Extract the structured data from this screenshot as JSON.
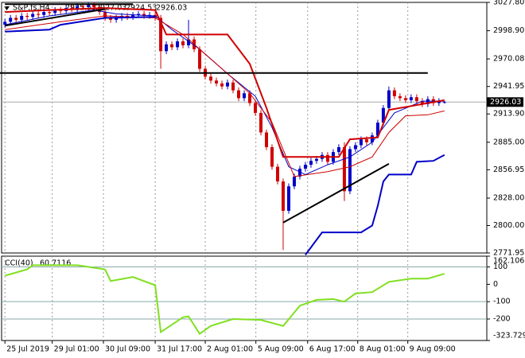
{
  "chart_data": {
    "type": "candlestick",
    "title": "S&P,fs,H4",
    "bull_color": "#0000c8",
    "bear_color": "#d00000",
    "xticks": [
      {
        "value": 0,
        "label": "25 Jul 2019"
      },
      {
        "value": 8.5,
        "label": "29 Jul 01:00"
      },
      {
        "value": 17.7,
        "label": "30 Jul 09:00"
      },
      {
        "value": 27,
        "label": "31 Jul 17:00"
      },
      {
        "value": 36,
        "label": "2 Aug 01:00"
      },
      {
        "value": 45.1,
        "label": "5 Aug 09:00"
      },
      {
        "value": 54.4,
        "label": "6 Aug 17:00"
      },
      {
        "value": 63.4,
        "label": "8 Aug 01:00"
      },
      {
        "value": 72.4,
        "label": "9 Aug 09:00"
      }
    ],
    "xlim": [
      -0.6,
      86.6
    ],
    "ylim": [
      2771.95,
      3027.8
    ],
    "yticks": [
      {
        "value": 3027.8,
        "label": "3027.80"
      },
      {
        "value": 2998.9,
        "label": "2998.90"
      },
      {
        "value": 2970.08,
        "label": "2970.08"
      },
      {
        "value": 2941.95,
        "label": "2941.95"
      },
      {
        "value": 2913.9,
        "label": "2913.90"
      },
      {
        "value": 2885,
        "label": "2885.00"
      },
      {
        "value": 2856.95,
        "label": "2856.95"
      },
      {
        "value": 2828,
        "label": "2828.00"
      },
      {
        "value": 2800,
        "label": "2800.00"
      },
      {
        "value": 2771.95,
        "label": "2771.95"
      }
    ],
    "open": [
      3005,
      3008,
      3012,
      3010,
      3014,
      3013,
      3016,
      3015,
      3018,
      3017,
      3020,
      3019,
      3022,
      3021,
      3024,
      3023,
      3025,
      3023,
      3018,
      3012,
      3010,
      3012,
      3014,
      3013,
      3015,
      3016,
      3014,
      3015,
      3012,
      2978,
      2985,
      2982,
      2988,
      2984,
      2990,
      2980,
      2960,
      2952,
      2948,
      2945,
      2942,
      2946,
      2938,
      2930,
      2935,
      2925,
      2915,
      2895,
      2880,
      2860,
      2845,
      2815,
      2840,
      2850,
      2858,
      2862,
      2866,
      2868,
      2872,
      2865,
      2875,
      2880,
      2835,
      2878,
      2882,
      2888,
      2885,
      2892,
      2905,
      2920,
      2938,
      2932,
      2930,
      2928,
      2931,
      2927,
      2924,
      2929,
      2925,
      2925.53
    ],
    "high": [
      3011,
      3015,
      3015,
      3017,
      3017,
      3019,
      3019,
      3021,
      3021,
      3023,
      3023,
      3025,
      3025,
      3027,
      3027,
      3028,
      3028,
      3026,
      3021,
      3015,
      3015,
      3017,
      3017,
      3018,
      3019,
      3019,
      3018,
      3018,
      3015,
      2988,
      2988,
      2991,
      2991,
      3010,
      2993,
      2983,
      2963,
      2955,
      2951,
      2948,
      2949,
      2949,
      2941,
      2938,
      2938,
      2928,
      2918,
      2898,
      2883,
      2863,
      2848,
      2843,
      2853,
      2861,
      2865,
      2869,
      2871,
      2875,
      2875,
      2878,
      2883,
      2885,
      2881,
      2885,
      2891,
      2891,
      2895,
      2908,
      2923,
      2942,
      2941,
      2935,
      2933,
      2934,
      2934,
      2930,
      2932,
      2932,
      2930,
      2927.03
    ],
    "low": [
      3002,
      3005,
      3007,
      3007,
      3010,
      3010,
      3012,
      3012,
      3014,
      3014,
      3016,
      3016,
      3018,
      3018,
      3020,
      3020,
      3020,
      3015,
      3009,
      3007,
      3007,
      3009,
      3010,
      3010,
      3012,
      3011,
      3011,
      3009,
      2960,
      2975,
      2979,
      2979,
      2981,
      2981,
      2977,
      2957,
      2949,
      2945,
      2942,
      2939,
      2939,
      2935,
      2927,
      2927,
      2922,
      2912,
      2892,
      2877,
      2857,
      2842,
      2775,
      2812,
      2837,
      2847,
      2855,
      2859,
      2863,
      2865,
      2862,
      2862,
      2872,
      2825,
      2832,
      2875,
      2879,
      2882,
      2882,
      2889,
      2902,
      2917,
      2929,
      2927,
      2925,
      2925,
      2924,
      2921,
      2921,
      2922,
      2922,
      2924.53
    ],
    "close": [
      3008,
      3012,
      3010,
      3014,
      3013,
      3016,
      3015,
      3018,
      3017,
      3020,
      3019,
      3022,
      3021,
      3024,
      3023,
      3025,
      3023,
      3018,
      3012,
      3010,
      3012,
      3014,
      3013,
      3015,
      3016,
      3014,
      3015,
      3012,
      2978,
      2985,
      2982,
      2988,
      2984,
      2990,
      2980,
      2960,
      2952,
      2948,
      2945,
      2942,
      2946,
      2938,
      2930,
      2935,
      2925,
      2915,
      2895,
      2880,
      2860,
      2845,
      2815,
      2840,
      2850,
      2858,
      2862,
      2866,
      2868,
      2872,
      2865,
      2875,
      2880,
      2835,
      2878,
      2882,
      2888,
      2885,
      2892,
      2905,
      2920,
      2938,
      2932,
      2930,
      2928,
      2931,
      2927,
      2924,
      2929,
      2925,
      2927,
      2926.03
    ],
    "indicators": [
      {
        "color": "#0000c8",
        "width": 1,
        "x": [
          0,
          8,
          16,
          20,
          27,
          30,
          35,
          40,
          45,
          48,
          51,
          54,
          58,
          62,
          66,
          70,
          75,
          79
        ],
        "values": [
          3005,
          3014,
          3020,
          3016,
          3014,
          3000,
          2980,
          2955,
          2932,
          2900,
          2860,
          2852,
          2862,
          2870,
          2885,
          2915,
          2927,
          2927
        ]
      },
      {
        "color": "#d00000",
        "width": 1,
        "x": [
          0,
          10,
          18,
          27,
          32,
          38,
          44,
          48,
          52,
          58,
          62,
          66,
          69,
          72,
          76,
          79
        ],
        "values": [
          3000,
          3008,
          3014,
          3012,
          2995,
          2965,
          2935,
          2905,
          2850,
          2855,
          2860,
          2870,
          2895,
          2912,
          2913,
          2917
        ]
      },
      {
        "color": "#d00000",
        "width": 2,
        "x": [
          0,
          8,
          18,
          27,
          29,
          40,
          44,
          47,
          50,
          54,
          60,
          62,
          67,
          69,
          79
        ],
        "values": [
          3018,
          3020,
          3022,
          3020,
          2995,
          2995,
          2965,
          2920,
          2870,
          2870,
          2870,
          2888,
          2890,
          2918,
          2928
        ]
      },
      {
        "color": "#0000c8",
        "width": 2,
        "x": [
          0,
          8,
          10,
          18,
          27,
          28,
          54,
          57,
          64,
          66,
          67,
          68,
          69,
          73,
          74,
          77,
          79
        ],
        "values": [
          2998,
          3000,
          3005,
          3012,
          3013,
          null,
          2770,
          2793,
          2793,
          2800,
          2820,
          2845,
          2852,
          2852,
          2865,
          2866,
          2872
        ]
      }
    ],
    "trendlines": [
      {
        "x": [
          0,
          23
        ],
        "values": [
          3026,
          3026
        ]
      },
      {
        "x": [
          0,
          18
        ],
        "values": [
          3004,
          3021
        ]
      },
      {
        "x": [
          -0.9,
          76
        ],
        "values": [
          2955.7,
          2955.7
        ]
      },
      {
        "x": [
          50,
          69
        ],
        "values": [
          2803,
          2863
        ]
      }
    ],
    "cci": {
      "label": "CCI(40)",
      "color": "#80e020",
      "ylim": [
        -323.7292,
        162.1061
      ],
      "yticks": [
        {
          "value": 162.1061,
          "label": "162.1061"
        },
        100,
        0,
        -100,
        -200,
        {
          "value": -323.7292,
          "label": "-323.7292"
        }
      ],
      "levels": [
        100,
        -100,
        -200
      ],
      "x": [
        0,
        4,
        5,
        13,
        18,
        19,
        23,
        27,
        28,
        32,
        33,
        35,
        37,
        41,
        46,
        50,
        53,
        56,
        59,
        61,
        63,
        66,
        69,
        73,
        76,
        79
      ],
      "values": [
        50,
        86,
        110,
        110,
        86,
        19,
        42,
        -5,
        -275,
        -190,
        -185,
        -285,
        -240,
        -200,
        -205,
        -240,
        -123,
        -90,
        -85,
        -100,
        -53,
        -45,
        14,
        33,
        33,
        60.7116
      ]
    }
  }
}
